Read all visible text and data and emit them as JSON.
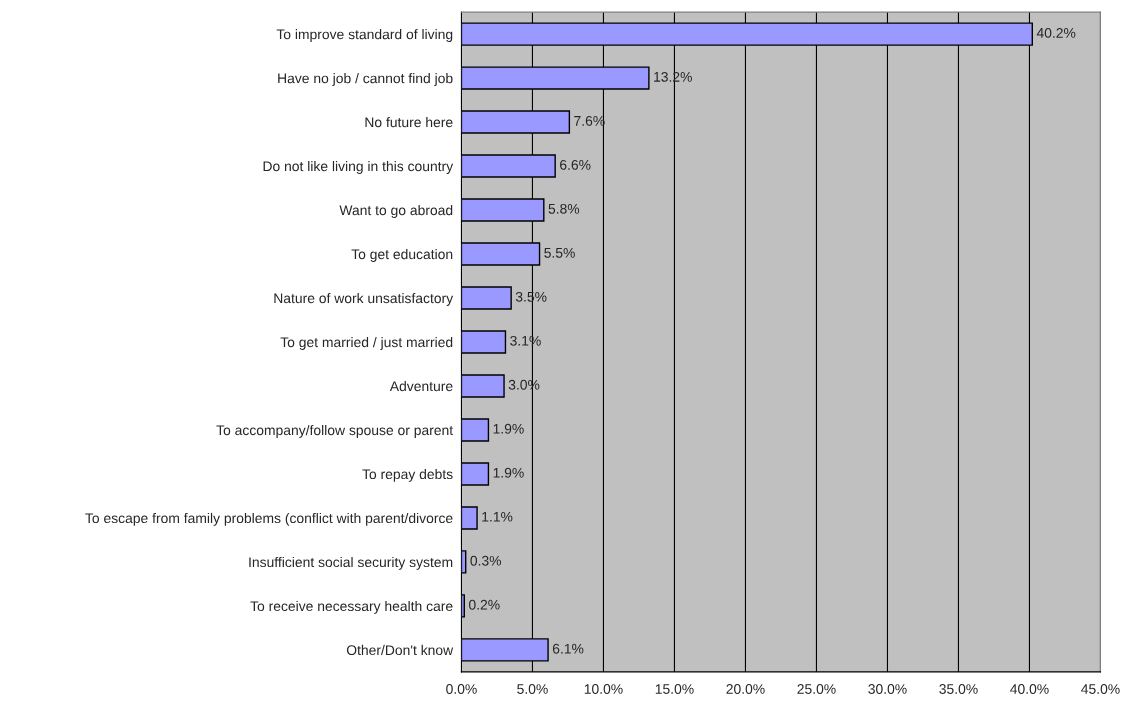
{
  "chart_data": {
    "type": "bar",
    "orientation": "horizontal",
    "categories": [
      "To improve standard of living",
      "Have no job / cannot find job",
      "No future here",
      "Do not like living in this country",
      "Want to go abroad",
      "To get education",
      "Nature of work unsatisfactory",
      "To get married / just married",
      "Adventure",
      "To accompany/follow spouse or parent",
      "To repay debts",
      "To escape from family problems (conflict with parent/divorce",
      "Insufficient social security system",
      "To receive necessary health care",
      "Other/Don't know"
    ],
    "values": [
      40.2,
      13.2,
      7.6,
      6.6,
      5.8,
      5.5,
      3.5,
      3.1,
      3.0,
      1.9,
      1.9,
      1.1,
      0.3,
      0.2,
      6.1
    ],
    "value_labels": [
      "40.2%",
      "13.2%",
      "7.6%",
      "6.6%",
      "5.8%",
      "5.5%",
      "3.5%",
      "3.1%",
      "3.0%",
      "1.9%",
      "1.9%",
      "1.1%",
      "0.3%",
      "0.2%",
      "6.1%"
    ],
    "color": "#9999ff",
    "xlim": [
      0,
      45
    ],
    "xticks": [
      {
        "value": 0,
        "label": "0.0%"
      },
      {
        "value": 5,
        "label": "5.0%"
      },
      {
        "value": 10,
        "label": "10.0%"
      },
      {
        "value": 15,
        "label": "15.0%"
      },
      {
        "value": 20,
        "label": "20.0%"
      },
      {
        "value": 25,
        "label": "25.0%"
      },
      {
        "value": 30,
        "label": "30.0%"
      },
      {
        "value": 35,
        "label": "35.0%"
      },
      {
        "value": 40,
        "label": "40.0%"
      },
      {
        "value": 45,
        "label": "45.0%"
      }
    ],
    "grid": "x"
  }
}
